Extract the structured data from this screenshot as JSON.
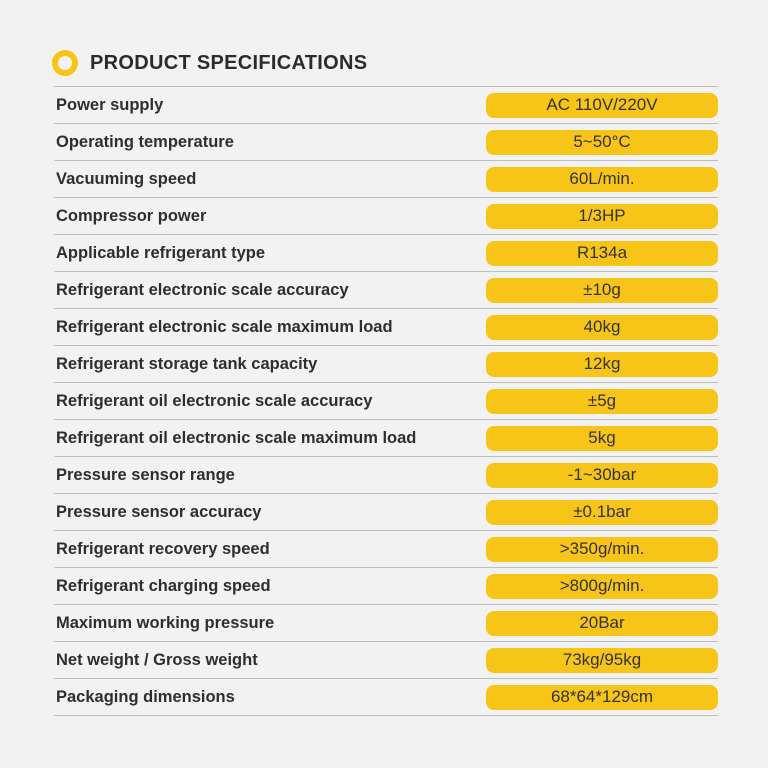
{
  "header": {
    "title": "PRODUCT SPECIFICATIONS",
    "bullet_icon": "ring-icon",
    "accent_color": "#f7c518"
  },
  "specs": [
    {
      "label": "Power supply",
      "value": "AC 110V/220V"
    },
    {
      "label": "Operating temperature",
      "value": "5~50°C"
    },
    {
      "label": "Vacuuming speed",
      "value": "60L/min."
    },
    {
      "label": "Compressor power",
      "value": "1/3HP"
    },
    {
      "label": "Applicable refrigerant type",
      "value": "R134a"
    },
    {
      "label": "Refrigerant electronic scale accuracy",
      "value": "±10g"
    },
    {
      "label": "Refrigerant electronic scale maximum load",
      "value": "40kg"
    },
    {
      "label": "Refrigerant storage tank capacity",
      "value": "12kg"
    },
    {
      "label": "Refrigerant oil electronic scale accuracy",
      "value": "±5g"
    },
    {
      "label": "Refrigerant oil electronic scale maximum load",
      "value": "5kg"
    },
    {
      "label": "Pressure sensor range",
      "value": "-1~30bar"
    },
    {
      "label": "Pressure sensor accuracy",
      "value": "±0.1bar"
    },
    {
      "label": "Refrigerant recovery speed",
      "value": ">350g/min."
    },
    {
      "label": "Refrigerant charging speed",
      "value": ">800g/min."
    },
    {
      "label": "Maximum working pressure",
      "value": "20Bar"
    },
    {
      "label": "Net weight / Gross weight",
      "value": "73kg/95kg"
    },
    {
      "label": "Packaging dimensions",
      "value": "68*64*129cm"
    }
  ]
}
